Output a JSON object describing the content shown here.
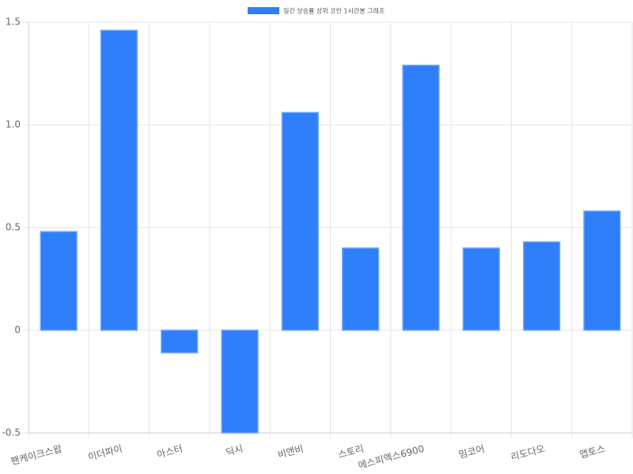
{
  "chart_data": {
    "type": "bar",
    "legend_label": "일간 상승률 상위 코인 1시간봉 그래프",
    "categories": [
      "팬케이크스왑",
      "이더파이",
      "아스터",
      "딕시",
      "비앤비",
      "스토리",
      "에스피엑스6900",
      "밈코어",
      "리도다오",
      "앱토스"
    ],
    "values": [
      0.48,
      1.46,
      -0.11,
      -0.5,
      1.06,
      0.4,
      1.29,
      0.4,
      0.43,
      0.58
    ],
    "color": "#2e7ff9",
    "ylim": [
      -0.5,
      1.5
    ],
    "yticks": [
      -0.5,
      0,
      0.5,
      {
        "value": 1.0,
        "label": "1.0"
      },
      1.5
    ],
    "grid": true
  }
}
